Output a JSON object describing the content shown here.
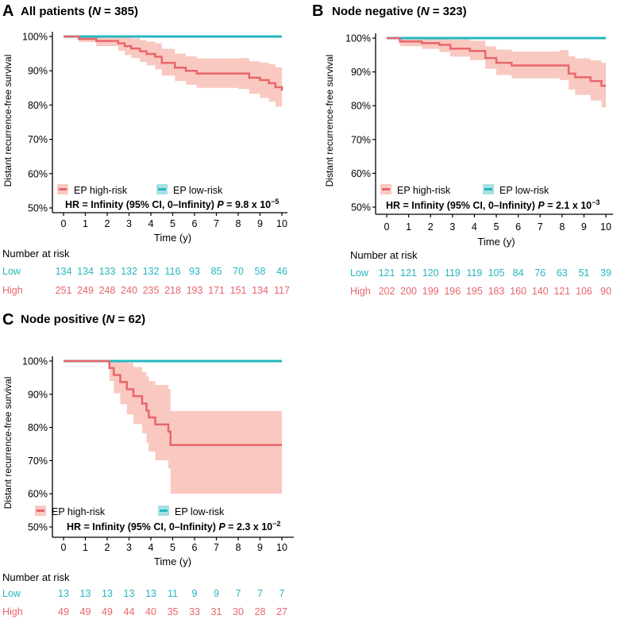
{
  "colors": {
    "high": "#e8666b",
    "high_band": "#f9c9c1",
    "low": "#26b7bf",
    "low_band": "#a6e0e3",
    "axis": "#000000"
  },
  "chart_data": [
    {
      "type": "line",
      "subtype": "kaplan-meier",
      "panel": "A",
      "title_prefix": "All patients (",
      "title_n": "N",
      "title_suffix": " = 385)",
      "ylabel": "Distant recurrence-free survival",
      "xlabel": "Time (y)",
      "x_ticks": [
        "0",
        "1",
        "2",
        "3",
        "4",
        "5",
        "6",
        "7",
        "8",
        "9",
        "10"
      ],
      "y_ticks": [
        "50%",
        "60%",
        "70%",
        "80%",
        "90%",
        "100%"
      ],
      "xlim": [
        0,
        10
      ],
      "ylim": [
        50,
        100
      ],
      "legend": [
        "EP high-risk",
        "EP low-risk"
      ],
      "stats_text": "HR = Infinity (95% CI, 0–Infinity) ",
      "p_prefix": "P",
      "p_value": " = 9.8 x 10",
      "p_exp": "−5",
      "series": [
        {
          "name": "EP high-risk",
          "x": [
            0,
            0.7,
            1.5,
            2.5,
            2.8,
            3.1,
            3.5,
            3.8,
            4.2,
            4.5,
            5.1,
            5.6,
            6.1,
            8.0,
            8.5,
            9.0,
            9.4,
            9.7,
            10
          ],
          "y": [
            100,
            99.3,
            98.7,
            98.0,
            97.2,
            96.5,
            95.7,
            94.9,
            94.1,
            92.3,
            90.9,
            90.0,
            89.2,
            89.2,
            88.0,
            87.3,
            86.4,
            85.2,
            84.2
          ],
          "lower": [
            100,
            98.4,
            97.2,
            95.8,
            94.6,
            93.7,
            92.6,
            91.6,
            90.4,
            88.6,
            87.0,
            85.9,
            85.0,
            84.7,
            83.3,
            82.1,
            81.0,
            79.6,
            78.5
          ],
          "upper": [
            100,
            100,
            100,
            100,
            99.9,
            99.5,
            99.0,
            98.5,
            98.0,
            96.4,
            95.0,
            94.2,
            93.6,
            93.7,
            92.8,
            92.4,
            91.9,
            91.0,
            90.2
          ]
        },
        {
          "name": "EP low-risk",
          "x": [
            0,
            10
          ],
          "y": [
            100,
            100
          ]
        }
      ],
      "risk_table": {
        "header": "Number at risk",
        "rows": [
          {
            "label": "Low",
            "values": [
              "134",
              "134",
              "133",
              "132",
              "132",
              "116",
              "93",
              "85",
              "70",
              "58",
              "46"
            ]
          },
          {
            "label": "High",
            "values": [
              "251",
              "249",
              "248",
              "240",
              "235",
              "218",
              "193",
              "171",
              "151",
              "134",
              "117"
            ]
          }
        ]
      }
    },
    {
      "type": "line",
      "subtype": "kaplan-meier",
      "panel": "B",
      "title_prefix": "Node negative (",
      "title_n": "N",
      "title_suffix": " = 323)",
      "ylabel": "Distant recurrence-free survival",
      "xlabel": "Time (y)",
      "x_ticks": [
        "0",
        "1",
        "2",
        "3",
        "4",
        "5",
        "6",
        "7",
        "8",
        "9",
        "10"
      ],
      "y_ticks": [
        "50%",
        "60%",
        "70%",
        "80%",
        "90%",
        "100%"
      ],
      "xlim": [
        0,
        10
      ],
      "ylim": [
        50,
        100
      ],
      "legend": [
        "EP high-risk",
        "EP low-risk"
      ],
      "stats_text": "HR = Infinity (95% CI, 0–Infinity) ",
      "p_prefix": "P",
      "p_value": " = 2.1 x 10",
      "p_exp": "−3",
      "series": [
        {
          "name": "EP high-risk",
          "x": [
            0,
            0.6,
            1.6,
            2.4,
            2.9,
            3.8,
            4.5,
            5.0,
            5.7,
            7.9,
            8.3,
            8.6,
            9.3,
            9.8,
            10
          ],
          "y": [
            100,
            99.0,
            98.5,
            98.0,
            96.9,
            96.2,
            94.1,
            92.7,
            91.9,
            91.9,
            89.5,
            88.4,
            87.3,
            85.9,
            85.9
          ],
          "lower": [
            100,
            97.6,
            96.8,
            95.9,
            94.5,
            93.5,
            90.9,
            89.1,
            88.1,
            87.6,
            84.8,
            83.2,
            81.5,
            79.5,
            79.5
          ],
          "upper": [
            100,
            100,
            100,
            100,
            99.6,
            99.2,
            97.6,
            96.6,
            96.0,
            96.5,
            94.6,
            94.0,
            93.4,
            92.7,
            92.7
          ]
        },
        {
          "name": "EP low-risk",
          "x": [
            0,
            10
          ],
          "y": [
            100,
            100
          ]
        }
      ],
      "risk_table": {
        "header": "Number at risk",
        "rows": [
          {
            "label": "Low",
            "values": [
              "121",
              "121",
              "120",
              "119",
              "119",
              "105",
              "84",
              "76",
              "63",
              "51",
              "39"
            ]
          },
          {
            "label": "High",
            "values": [
              "202",
              "200",
              "199",
              "196",
              "195",
              "183",
              "160",
              "140",
              "121",
              "106",
              "90"
            ]
          }
        ]
      }
    },
    {
      "type": "line",
      "subtype": "kaplan-meier",
      "panel": "C",
      "title_prefix": "Node positive (",
      "title_n": "N",
      "title_suffix": " = 62)",
      "ylabel": "Distant recurrence-free survival",
      "xlabel": "Time (y)",
      "x_ticks": [
        "0",
        "1",
        "2",
        "3",
        "4",
        "5",
        "6",
        "7",
        "8",
        "9",
        "10"
      ],
      "y_ticks": [
        "50%",
        "60%",
        "70%",
        "80%",
        "90%",
        "100%"
      ],
      "xlim": [
        0,
        10
      ],
      "ylim": [
        50,
        100
      ],
      "legend": [
        "EP high-risk",
        "EP low-risk"
      ],
      "stats_text": "HR = Infinity (95% CI, 0–Infinity) ",
      "p_prefix": "P",
      "p_value": " = 2.3 x 10",
      "p_exp": "−2",
      "series": [
        {
          "name": "EP high-risk",
          "x": [
            0,
            2.1,
            2.3,
            2.6,
            2.9,
            3.2,
            3.6,
            3.8,
            3.9,
            4.2,
            4.8,
            4.9,
            10
          ],
          "y": [
            100,
            97.9,
            95.8,
            93.7,
            91.5,
            89.4,
            87.2,
            85.1,
            83.0,
            80.9,
            78.7,
            74.7,
            74.7
          ],
          "lower": [
            100,
            94.0,
            90.3,
            87.0,
            83.9,
            81.0,
            78.2,
            75.4,
            72.7,
            70.1,
            67.6,
            60.0,
            60.0
          ],
          "upper": [
            100,
            100,
            100,
            100,
            99.5,
            98.2,
            96.7,
            95.4,
            94.0,
            92.8,
            91.6,
            85.0,
            85.0
          ]
        },
        {
          "name": "EP low-risk",
          "x": [
            0,
            10
          ],
          "y": [
            100,
            100
          ]
        }
      ],
      "risk_table": {
        "header": "Number at risk",
        "rows": [
          {
            "label": "Low",
            "values": [
              "13",
              "13",
              "13",
              "13",
              "13",
              "11",
              "9",
              "9",
              "7",
              "7",
              "7"
            ]
          },
          {
            "label": "High",
            "values": [
              "49",
              "49",
              "49",
              "44",
              "40",
              "35",
              "33",
              "31",
              "30",
              "28",
              "27"
            ]
          }
        ]
      }
    }
  ]
}
